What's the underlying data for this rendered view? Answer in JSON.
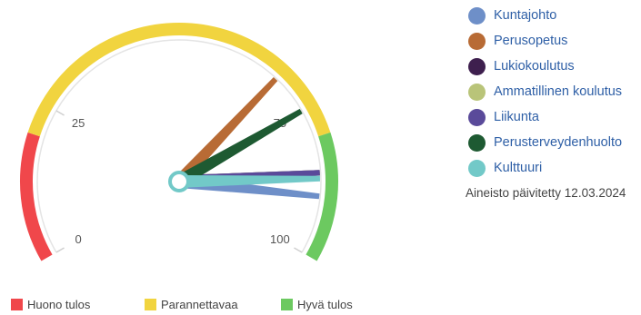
{
  "chart_data": {
    "type": "gauge",
    "min": 0,
    "max": 100,
    "ticks": [
      {
        "value": 0,
        "label": "0"
      },
      {
        "value": 25,
        "label": "25"
      },
      {
        "value": 75,
        "label": "75"
      },
      {
        "value": 100,
        "label": "100"
      }
    ],
    "bands": [
      {
        "name": "Huono tulos",
        "from": 0,
        "to": 20,
        "color": "#f0474b"
      },
      {
        "name": "Parannettavaa",
        "from": 20,
        "to": 80,
        "color": "#f1d43f"
      },
      {
        "name": "Hyvä tulos",
        "from": 80,
        "to": 100,
        "color": "#6cc960"
      }
    ],
    "series": [
      {
        "name": "Kuntajohto",
        "value": 90,
        "color": "#6e8fc8"
      },
      {
        "name": "Perusopetus",
        "value": 68,
        "color": "#b86b35"
      },
      {
        "name": "Lukiokoulutus",
        "value": 86,
        "color": "#3e1f4e"
      },
      {
        "name": "Ammatillinen koulutus",
        "value": 86,
        "color": "#b9c479"
      },
      {
        "name": "Liikunta",
        "value": 86,
        "color": "#5a4a9a"
      },
      {
        "name": "Perusterveydenhuolto",
        "value": 75,
        "color": "#1e5a32"
      },
      {
        "name": "Kulttuuri",
        "value": 87,
        "color": "#72c9c8"
      }
    ]
  },
  "updated_text": "Aineisto päivitetty 12.03.2024"
}
